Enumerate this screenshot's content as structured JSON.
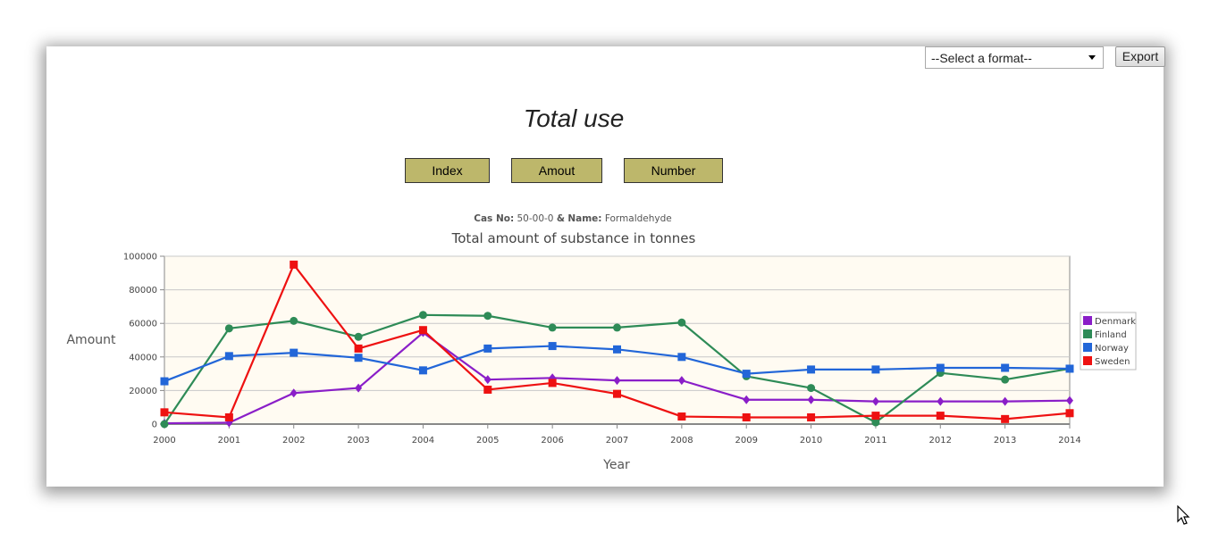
{
  "toolbar": {
    "format_select_value": "--Select a format--",
    "export_label": "Export"
  },
  "page_title": "Total use",
  "mode_buttons": [
    "Index",
    "Amout",
    "Number"
  ],
  "chart_subtitle": {
    "cas_label": "Cas No:",
    "cas_value": "50-00-0",
    "separator": "&",
    "name_label": "Name:",
    "name_value": "Formaldehyde"
  },
  "chart_data": {
    "type": "line",
    "title": "Total amount of substance in tonnes",
    "xlabel": "Year",
    "ylabel": "Amount",
    "ylim": [
      0,
      100000
    ],
    "yticks": [
      0,
      20000,
      40000,
      60000,
      80000,
      100000
    ],
    "x": [
      "2000",
      "2001",
      "2002",
      "2003",
      "2004",
      "2005",
      "2006",
      "2007",
      "2008",
      "2009",
      "2010",
      "2011",
      "2012",
      "2013",
      "2014"
    ],
    "grid": "horizontal",
    "legend_position": "right",
    "series": [
      {
        "name": "Denmark",
        "color": "#8a1ec8",
        "marker": "diamond",
        "values": [
          500,
          800,
          18500,
          21500,
          54500,
          26500,
          27500,
          26000,
          26000,
          14500,
          14500,
          13500,
          13500,
          13500,
          14000
        ]
      },
      {
        "name": "Finland",
        "color": "#2e8b57",
        "marker": "circle",
        "values": [
          0,
          57000,
          61500,
          52000,
          65000,
          64500,
          57500,
          57500,
          60500,
          28500,
          21500,
          1000,
          30500,
          26500,
          33000
        ]
      },
      {
        "name": "Norway",
        "color": "#2266d8",
        "marker": "square",
        "values": [
          25500,
          40500,
          42500,
          39500,
          32000,
          45000,
          46500,
          44500,
          40000,
          30000,
          32500,
          32500,
          33500,
          33500,
          33000
        ]
      },
      {
        "name": "Sweden",
        "color": "#ee1111",
        "marker": "square",
        "values": [
          7000,
          4000,
          95000,
          45000,
          56000,
          20500,
          24500,
          18000,
          4500,
          4000,
          4000,
          5000,
          5000,
          3000,
          6500
        ]
      }
    ]
  }
}
